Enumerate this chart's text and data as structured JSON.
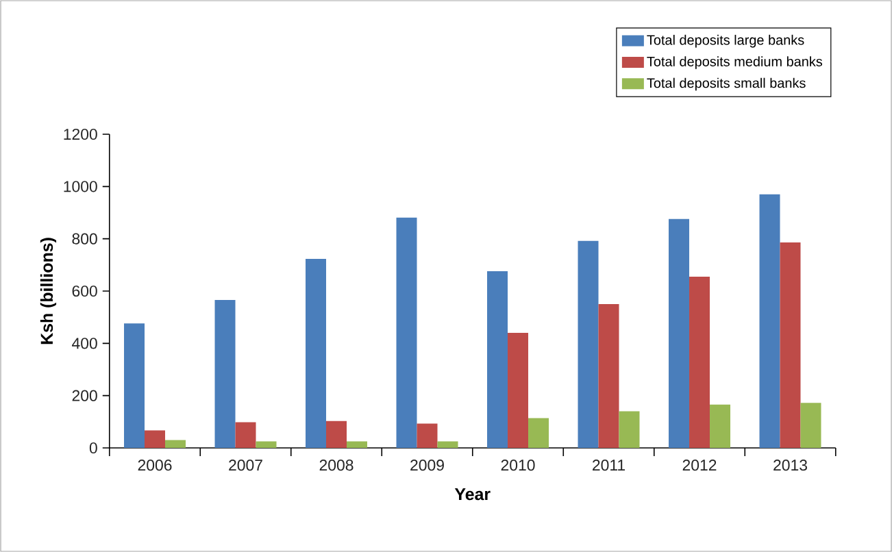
{
  "chart_data": {
    "type": "bar",
    "xlabel": "Year",
    "ylabel": "Ksh (billions)",
    "categories": [
      "2006",
      "2007",
      "2008",
      "2009",
      "2010",
      "2011",
      "2012",
      "2013"
    ],
    "series": [
      {
        "name": "Total deposits large banks",
        "color": "#4a7ebb",
        "values": [
          476,
          566,
          723,
          881,
          676,
          792,
          876,
          970
        ]
      },
      {
        "name": "Total deposits medium banks",
        "color": "#be4b48",
        "values": [
          67,
          98,
          103,
          93,
          440,
          550,
          655,
          786
        ]
      },
      {
        "name": "Total deposits small banks",
        "color": "#98b954",
        "values": [
          30,
          25,
          25,
          25,
          114,
          140,
          166,
          172
        ]
      }
    ],
    "ylim": [
      0,
      1200
    ],
    "yticks": [
      0,
      200,
      400,
      600,
      800,
      1000,
      1200
    ],
    "grid": false,
    "legend": "top right"
  }
}
